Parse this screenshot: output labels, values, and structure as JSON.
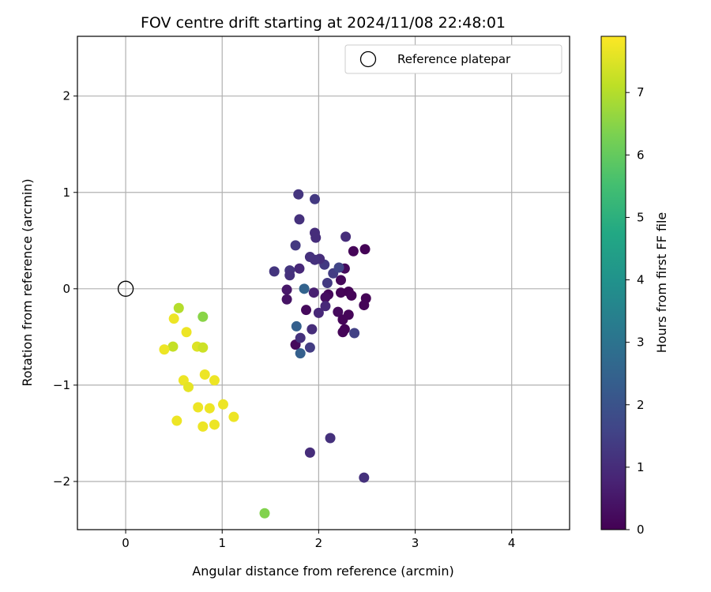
{
  "chart_data": {
    "type": "scatter",
    "title": "FOV centre drift starting at 2024/11/08 22:48:01",
    "xlabel": "Angular distance from reference (arcmin)",
    "ylabel": "Rotation from reference (arcmin)",
    "xlim": [
      -0.5,
      4.6
    ],
    "ylim": [
      -2.5,
      2.62
    ],
    "xticks": [
      0,
      1,
      2,
      3,
      4
    ],
    "xtick_labels": [
      "0",
      "1",
      "2",
      "3",
      "4"
    ],
    "yticks": [
      -2,
      -1,
      0,
      1,
      2
    ],
    "ytick_labels": [
      "−2",
      "−1",
      "0",
      "1",
      "2"
    ],
    "grid": true,
    "legend": {
      "position": "top-right",
      "entries": [
        "Reference platepar"
      ]
    },
    "reference_point": {
      "x": 0,
      "y": 0
    },
    "colorbar": {
      "label": "Hours from first FF file",
      "range": [
        0,
        7.9
      ],
      "ticks": [
        0,
        1,
        2,
        3,
        4,
        5,
        6,
        7
      ],
      "tick_labels": [
        "0",
        "1",
        "2",
        "3",
        "4",
        "5",
        "6",
        "7"
      ],
      "colormap": "viridis"
    },
    "points": [
      {
        "x": 2.48,
        "y": 0.41,
        "t": 0.05
      },
      {
        "x": 2.36,
        "y": 0.39,
        "t": 0.1
      },
      {
        "x": 2.27,
        "y": 0.21,
        "t": 0.2
      },
      {
        "x": 2.23,
        "y": 0.09,
        "t": 0.15
      },
      {
        "x": 2.23,
        "y": -0.04,
        "t": 0.1
      },
      {
        "x": 2.31,
        "y": -0.03,
        "t": 0.05
      },
      {
        "x": 2.34,
        "y": -0.07,
        "t": 0.1
      },
      {
        "x": 2.49,
        "y": -0.1,
        "t": 0.05
      },
      {
        "x": 2.47,
        "y": -0.17,
        "t": 0.1
      },
      {
        "x": 2.2,
        "y": -0.24,
        "t": 0.2
      },
      {
        "x": 2.31,
        "y": -0.27,
        "t": 0.1
      },
      {
        "x": 2.25,
        "y": -0.32,
        "t": 0.1
      },
      {
        "x": 2.27,
        "y": -0.42,
        "t": 0.05
      },
      {
        "x": 2.25,
        "y": -0.45,
        "t": 0.1
      },
      {
        "x": 2.1,
        "y": -0.06,
        "t": 0.15
      },
      {
        "x": 2.07,
        "y": -0.09,
        "t": 0.3
      },
      {
        "x": 1.87,
        "y": -0.22,
        "t": 0.2
      },
      {
        "x": 1.76,
        "y": -0.58,
        "t": 0.2
      },
      {
        "x": 1.67,
        "y": -0.11,
        "t": 0.4
      },
      {
        "x": 1.67,
        "y": -0.01,
        "t": 0.5
      },
      {
        "x": 1.95,
        "y": -0.04,
        "t": 0.7
      },
      {
        "x": 2.0,
        "y": -0.25,
        "t": 0.9
      },
      {
        "x": 2.07,
        "y": -0.18,
        "t": 0.9
      },
      {
        "x": 2.09,
        "y": 0.06,
        "t": 1.3
      },
      {
        "x": 2.15,
        "y": 0.16,
        "t": 1.4
      },
      {
        "x": 2.21,
        "y": 0.22,
        "t": 1.6
      },
      {
        "x": 2.06,
        "y": 0.25,
        "t": 1.3
      },
      {
        "x": 2.01,
        "y": 0.31,
        "t": 1.0
      },
      {
        "x": 1.96,
        "y": 0.3,
        "t": 1.1
      },
      {
        "x": 1.91,
        "y": 0.33,
        "t": 1.1
      },
      {
        "x": 1.8,
        "y": 0.21,
        "t": 0.9
      },
      {
        "x": 1.7,
        "y": 0.19,
        "t": 1.2
      },
      {
        "x": 1.7,
        "y": 0.14,
        "t": 1.1
      },
      {
        "x": 1.54,
        "y": 0.18,
        "t": 1.2
      },
      {
        "x": 1.76,
        "y": 0.45,
        "t": 1.3
      },
      {
        "x": 1.97,
        "y": 0.53,
        "t": 1.0
      },
      {
        "x": 1.96,
        "y": 0.58,
        "t": 1.0
      },
      {
        "x": 2.28,
        "y": 0.54,
        "t": 1.0
      },
      {
        "x": 1.8,
        "y": 0.72,
        "t": 1.1
      },
      {
        "x": 1.79,
        "y": 0.98,
        "t": 1.2
      },
      {
        "x": 1.96,
        "y": 0.93,
        "t": 1.3
      },
      {
        "x": 2.37,
        "y": -0.46,
        "t": 1.5
      },
      {
        "x": 1.93,
        "y": -0.42,
        "t": 1.0
      },
      {
        "x": 1.81,
        "y": -0.51,
        "t": 1.1
      },
      {
        "x": 1.91,
        "y": -0.61,
        "t": 1.4
      },
      {
        "x": 1.85,
        "y": 0.0,
        "t": 2.5
      },
      {
        "x": 1.77,
        "y": -0.39,
        "t": 2.4
      },
      {
        "x": 1.81,
        "y": -0.67,
        "t": 2.4
      },
      {
        "x": 2.12,
        "y": -1.55,
        "t": 1.1
      },
      {
        "x": 1.91,
        "y": -1.7,
        "t": 1.0
      },
      {
        "x": 2.47,
        "y": -1.96,
        "t": 1.1
      },
      {
        "x": 0.55,
        "y": -0.2,
        "t": 7.0
      },
      {
        "x": 0.8,
        "y": -0.29,
        "t": 6.5
      },
      {
        "x": 0.5,
        "y": -0.31,
        "t": 7.7
      },
      {
        "x": 0.63,
        "y": -0.45,
        "t": 7.7
      },
      {
        "x": 0.74,
        "y": -0.6,
        "t": 7.5
      },
      {
        "x": 0.8,
        "y": -0.61,
        "t": 7.3
      },
      {
        "x": 0.49,
        "y": -0.6,
        "t": 7.2
      },
      {
        "x": 0.4,
        "y": -0.63,
        "t": 7.7
      },
      {
        "x": 0.6,
        "y": -0.95,
        "t": 7.7
      },
      {
        "x": 0.65,
        "y": -1.02,
        "t": 7.6
      },
      {
        "x": 0.82,
        "y": -0.89,
        "t": 7.7
      },
      {
        "x": 0.92,
        "y": -0.95,
        "t": 7.7
      },
      {
        "x": 0.75,
        "y": -1.23,
        "t": 7.7
      },
      {
        "x": 0.87,
        "y": -1.24,
        "t": 7.7
      },
      {
        "x": 1.01,
        "y": -1.2,
        "t": 7.7
      },
      {
        "x": 1.12,
        "y": -1.33,
        "t": 7.7
      },
      {
        "x": 0.53,
        "y": -1.37,
        "t": 7.7
      },
      {
        "x": 0.8,
        "y": -1.43,
        "t": 7.7
      },
      {
        "x": 0.92,
        "y": -1.41,
        "t": 7.7
      },
      {
        "x": 1.44,
        "y": -2.33,
        "t": 6.4
      }
    ]
  }
}
